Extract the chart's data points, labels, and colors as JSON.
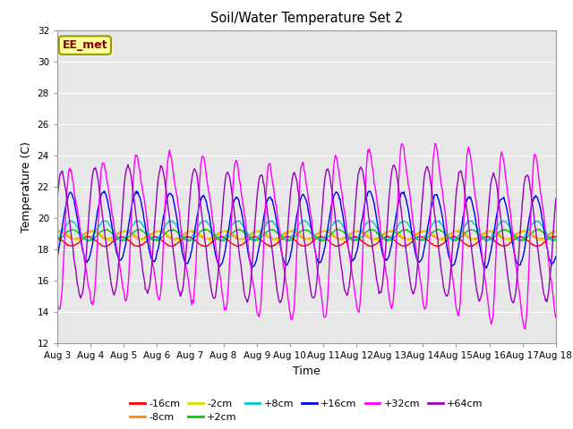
{
  "title": "Soil/Water Temperature Set 2",
  "xlabel": "Time",
  "ylabel": "Temperature (C)",
  "ylim": [
    12,
    32
  ],
  "yticks": [
    12,
    14,
    16,
    18,
    20,
    22,
    24,
    26,
    28,
    30,
    32
  ],
  "x_labels": [
    "Aug 3",
    "Aug 4",
    "Aug 5",
    "Aug 6",
    "Aug 7",
    "Aug 8",
    "Aug 9",
    "Aug 10",
    "Aug 11",
    "Aug 12",
    "Aug 13",
    "Aug 14",
    "Aug 15",
    "Aug 16",
    "Aug 17",
    "Aug 18"
  ],
  "annotation_text": "EE_met",
  "annotation_color": "#8B0000",
  "annotation_bg": "#FFFF99",
  "annotation_border": "#999900",
  "bg_color": "#E8E8E8",
  "legend_entries": [
    "-16cm",
    "-8cm",
    "-2cm",
    "+2cm",
    "+8cm",
    "+16cm",
    "+32cm",
    "+64cm"
  ],
  "line_colors": [
    "#FF0000",
    "#FF8C00",
    "#DDDD00",
    "#00CC00",
    "#00CCCC",
    "#0000EE",
    "#FF00FF",
    "#9900BB"
  ],
  "n_points": 720,
  "days": 15,
  "base_temp": 19.0
}
